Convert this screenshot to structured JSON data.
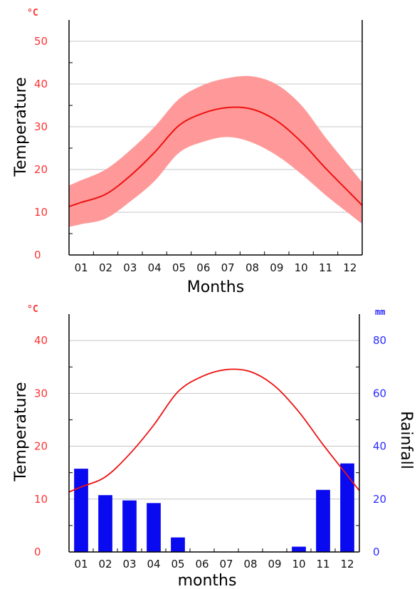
{
  "chart_data": [
    {
      "type": "area",
      "categories": [
        "01",
        "02",
        "03",
        "04",
        "05",
        "06",
        "07",
        "08",
        "09",
        "10",
        "11",
        "12"
      ],
      "series": [
        {
          "values": [
            12.3,
            14.2,
            18.5,
            24.0,
            30.3,
            33.2,
            34.5,
            34.1,
            31.4,
            26.5,
            20.3,
            14.5
          ]
        },
        {
          "values": [
            17.5,
            20.0,
            24.5,
            30.0,
            36.5,
            39.8,
            41.4,
            41.8,
            39.9,
            35.1,
            27.5,
            20.5
          ]
        },
        {
          "values": [
            7.2,
            8.5,
            12.5,
            17.3,
            23.9,
            26.5,
            27.6,
            26.3,
            23.3,
            19.0,
            14.0,
            9.5
          ]
        }
      ],
      "ylabel": "Temperature",
      "yunit": "°C",
      "xlabel": "Months",
      "ylim": [
        0,
        55
      ],
      "yticks": [
        0,
        10,
        20,
        30,
        40,
        50
      ],
      "grid": true,
      "colors": {
        "line": "#ee1111",
        "band": "#ff9999",
        "tick": "#ff3333"
      }
    },
    {
      "type": "bar",
      "categories": [
        "01",
        "02",
        "03",
        "04",
        "05",
        "06",
        "07",
        "08",
        "09",
        "10",
        "11",
        "12"
      ],
      "temperature": [
        12.3,
        14.2,
        18.5,
        24.0,
        30.3,
        33.2,
        34.5,
        34.1,
        31.4,
        26.5,
        20.3,
        14.5
      ],
      "rainfall": [
        31.5,
        21.5,
        19.5,
        18.5,
        5.5,
        0,
        0,
        0,
        0,
        2.0,
        23.5,
        33.5
      ],
      "ylabel": "Temperature",
      "yunit": "°C",
      "y2label": "Rainfall",
      "y2unit": "mm",
      "xlabel": "months",
      "ylim": [
        0,
        45
      ],
      "y2lim": [
        0,
        90
      ],
      "yticks": [
        0,
        10,
        20,
        30,
        40
      ],
      "y2ticks": [
        0,
        20,
        40,
        60,
        80
      ],
      "grid": true,
      "colors": {
        "line": "#ee1111",
        "bars": "#0a0af0",
        "tick_left": "#ff3333",
        "tick_right": "#2b2bff"
      }
    }
  ]
}
